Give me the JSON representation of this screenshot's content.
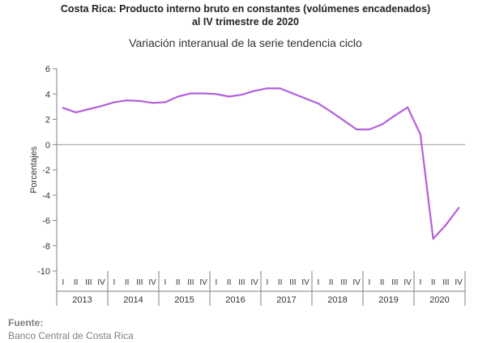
{
  "title_line1": "Costa Rica: Producto interno bruto en constantes (volúmenes encadenados)",
  "title_line2": "al IV trimestre de 2020",
  "source_label": "Fuente:",
  "source_text": "Banco Central de Costa Rica",
  "colors": {
    "line": "#b460d8",
    "axis": "#808080",
    "grid": "#9a9a9a"
  },
  "chart_data": {
    "type": "line",
    "title": "Variación interanual de la serie tendencia ciclo",
    "ylabel": "Porcentajes",
    "xlabel": "",
    "ylim": [
      -10,
      6
    ],
    "yticks": [
      6,
      4,
      2,
      0,
      -2,
      -4,
      -6,
      -8,
      -10
    ],
    "grid": false,
    "quarters": [
      "I",
      "II",
      "III",
      "IV"
    ],
    "years": [
      "2013",
      "2014",
      "2015",
      "2016",
      "2017",
      "2018",
      "2019",
      "2020"
    ],
    "series": [
      {
        "values": [
          2.9,
          2.55,
          2.8,
          3.05,
          3.35,
          3.5,
          3.45,
          3.3,
          3.35,
          3.8,
          4.05,
          4.05,
          4.0,
          3.8,
          3.95,
          4.25,
          4.45,
          4.45,
          4.05,
          3.65,
          3.25,
          2.6,
          1.9,
          1.2,
          1.2,
          1.6,
          2.3,
          2.95,
          0.8,
          -7.45,
          -6.35,
          -5.0
        ]
      }
    ]
  }
}
